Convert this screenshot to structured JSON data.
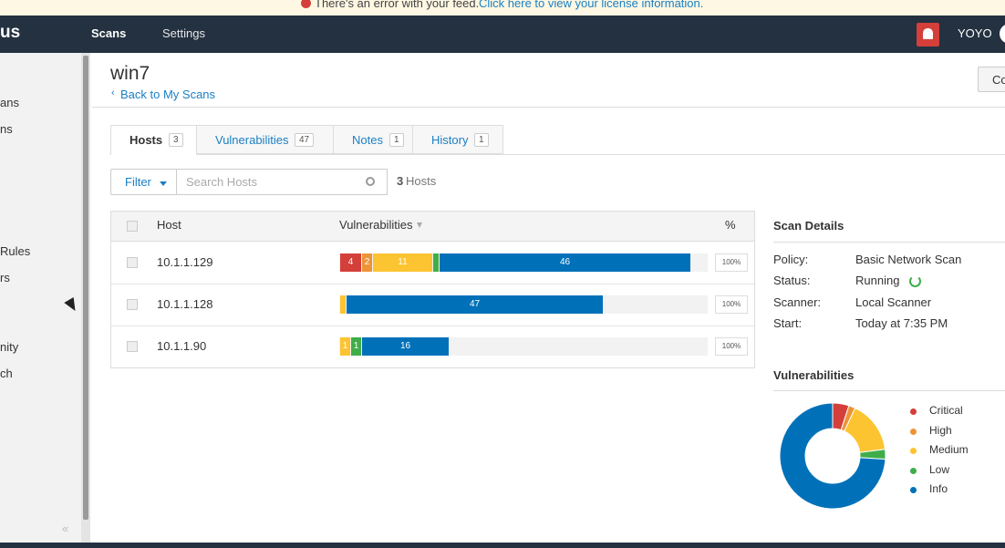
{
  "banner": {
    "message": "There's an error with your feed.",
    "link": "Click here to view your license information."
  },
  "nav": {
    "logo": "us",
    "items": [
      "Scans",
      "Settings"
    ],
    "user": "YOYO"
  },
  "sidebar": {
    "items": [
      "ans",
      "ns",
      "Rules",
      "rs",
      "nity",
      "ch"
    ]
  },
  "header": {
    "title": "win7",
    "back": "Back to My Scans",
    "button": "Co"
  },
  "tabs": [
    {
      "label": "Hosts",
      "count": 3
    },
    {
      "label": "Vulnerabilities",
      "count": 47
    },
    {
      "label": "Notes",
      "count": 1
    },
    {
      "label": "History",
      "count": 1
    }
  ],
  "filter": {
    "button": "Filter",
    "placeholder": "Search Hosts",
    "count": 3,
    "count_label": "Hosts"
  },
  "table": {
    "columns": [
      "Host",
      "Vulnerabilities",
      "%"
    ],
    "severities": [
      "Critical",
      "High",
      "Medium",
      "Low",
      "Info"
    ],
    "colors": [
      "#d43f3a",
      "#ee9336",
      "#fdc431",
      "#3fae49",
      "#0071b9"
    ],
    "rows": [
      {
        "host": "10.1.1.129",
        "values": [
          4,
          2,
          11,
          1,
          46
        ],
        "value_labels": [
          "4",
          "2",
          "11",
          null,
          "46"
        ],
        "percent": "100%"
      },
      {
        "host": "10.1.1.128",
        "values": [
          0,
          0,
          1,
          0,
          47
        ],
        "value_labels": [
          null,
          null,
          null,
          null,
          "47"
        ],
        "percent": "100%"
      },
      {
        "host": "10.1.1.90",
        "values": [
          0,
          0,
          1,
          1,
          16
        ],
        "value_labels": [
          null,
          null,
          "1",
          "1",
          "16"
        ],
        "percent": "100%"
      }
    ]
  },
  "scan_details": {
    "title": "Scan Details",
    "rows": [
      [
        "Policy:",
        "Basic Network Scan"
      ],
      [
        "Status:",
        "Running"
      ],
      [
        "Scanner:",
        "Local Scanner"
      ],
      [
        "Start:",
        "Today at 7:35 PM"
      ]
    ]
  },
  "donut": {
    "title": "Vulnerabilities",
    "labels": [
      "Critical",
      "High",
      "Medium",
      "Low",
      "Info"
    ],
    "values": [
      5,
      2,
      16,
      3,
      74
    ]
  }
}
